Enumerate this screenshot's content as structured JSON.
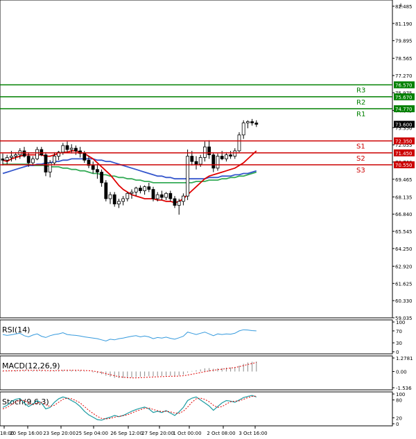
{
  "chart_data": {
    "type": "candlestick",
    "window_close_glyph": "▲",
    "main": {
      "price_ticks": [
        "82.485",
        "81.190",
        "79.895",
        "78.565",
        "77.270",
        "75.975",
        "74.645",
        "73.350",
        "72.055",
        "70.760",
        "69.465",
        "68.135",
        "66.840",
        "65.545",
        "64.250",
        "62.920",
        "61.625",
        "60.330",
        "59.035"
      ],
      "ylim": [
        59.035,
        82.485
      ],
      "levels": [
        {
          "name": "R3",
          "value": 76.57,
          "label": "76.570",
          "color": "#008000"
        },
        {
          "name": "R2",
          "value": 75.67,
          "label": "75.670",
          "color": "#008000"
        },
        {
          "name": "R1",
          "value": 74.77,
          "label": "74.770",
          "color": "#008000"
        },
        {
          "name": "S1",
          "value": 72.35,
          "label": "72.350",
          "color": "#cc0000"
        },
        {
          "name": "S2",
          "value": 71.45,
          "label": "71.450",
          "color": "#cc0000"
        },
        {
          "name": "S3",
          "value": 70.55,
          "label": "70.550",
          "color": "#cc0000"
        }
      ],
      "current_price": {
        "value": 73.6,
        "label": "73.600"
      },
      "candles": [
        [
          71.0,
          71.4,
          70.5,
          70.9
        ],
        [
          70.9,
          71.3,
          70.6,
          71.1
        ],
        [
          71.1,
          71.6,
          70.8,
          71.2
        ],
        [
          71.2,
          71.5,
          70.9,
          71.3
        ],
        [
          71.3,
          71.8,
          71.0,
          71.6
        ],
        [
          71.6,
          71.9,
          71.1,
          71.2
        ],
        [
          71.2,
          71.5,
          70.4,
          70.7
        ],
        [
          70.7,
          71.2,
          70.5,
          71.0
        ],
        [
          71.0,
          71.9,
          70.9,
          71.7
        ],
        [
          71.7,
          71.9,
          71.2,
          71.3
        ],
        [
          71.3,
          71.5,
          69.7,
          70.0
        ],
        [
          70.0,
          70.9,
          69.6,
          70.7
        ],
        [
          70.7,
          71.5,
          70.5,
          71.2
        ],
        [
          71.2,
          71.6,
          70.9,
          71.5
        ],
        [
          71.5,
          72.2,
          71.3,
          72.0
        ],
        [
          72.0,
          72.3,
          71.5,
          71.7
        ],
        [
          71.7,
          72.1,
          71.4,
          71.8
        ],
        [
          71.8,
          72.0,
          71.3,
          71.6
        ],
        [
          71.6,
          71.9,
          71.1,
          71.4
        ],
        [
          71.4,
          71.6,
          70.7,
          70.9
        ],
        [
          70.9,
          71.2,
          70.3,
          70.5
        ],
        [
          70.5,
          70.8,
          69.9,
          70.2
        ],
        [
          70.2,
          70.6,
          69.5,
          70.0
        ],
        [
          70.0,
          70.2,
          68.9,
          69.2
        ],
        [
          69.2,
          69.4,
          67.8,
          68.0
        ],
        [
          68.0,
          68.5,
          67.6,
          68.3
        ],
        [
          68.3,
          68.5,
          67.4,
          67.6
        ],
        [
          67.6,
          68.0,
          67.3,
          67.8
        ],
        [
          67.8,
          68.2,
          67.5,
          68.0
        ],
        [
          68.0,
          68.5,
          67.8,
          68.4
        ],
        [
          68.4,
          68.7,
          68.0,
          68.5
        ],
        [
          68.5,
          68.9,
          68.2,
          68.8
        ],
        [
          68.8,
          69.0,
          68.4,
          68.6
        ],
        [
          68.6,
          69.0,
          68.3,
          68.9
        ],
        [
          68.9,
          69.2,
          68.5,
          68.7
        ],
        [
          68.7,
          68.9,
          67.8,
          68.0
        ],
        [
          68.0,
          68.5,
          67.8,
          68.3
        ],
        [
          68.3,
          68.6,
          67.9,
          68.1
        ],
        [
          68.1,
          68.5,
          67.9,
          68.4
        ],
        [
          68.4,
          68.6,
          67.8,
          68.0
        ],
        [
          68.0,
          68.2,
          67.3,
          67.5
        ],
        [
          67.5,
          68.0,
          66.8,
          67.8
        ],
        [
          67.8,
          68.4,
          67.5,
          68.2
        ],
        [
          68.2,
          71.7,
          67.9,
          71.2
        ],
        [
          71.2,
          71.6,
          70.5,
          70.8
        ],
        [
          70.8,
          71.2,
          70.2,
          70.6
        ],
        [
          70.6,
          71.3,
          70.4,
          71.1
        ],
        [
          71.1,
          72.3,
          70.8,
          71.9
        ],
        [
          71.9,
          72.4,
          71.0,
          71.3
        ],
        [
          71.3,
          71.5,
          70.0,
          70.3
        ],
        [
          70.3,
          71.4,
          70.1,
          71.2
        ],
        [
          71.2,
          71.6,
          70.9,
          71.0
        ],
        [
          71.0,
          71.5,
          70.8,
          71.3
        ],
        [
          71.3,
          71.6,
          71.0,
          71.2
        ],
        [
          71.2,
          71.8,
          71.0,
          71.6
        ],
        [
          71.6,
          73.0,
          71.5,
          72.8
        ],
        [
          72.8,
          73.9,
          72.5,
          73.7
        ],
        [
          73.7,
          73.9,
          73.3,
          73.8
        ],
        [
          73.8,
          74.0,
          73.5,
          73.7
        ],
        [
          73.7,
          73.9,
          73.4,
          73.6
        ]
      ],
      "ma_red": [
        70.9,
        70.8,
        71.0,
        71.1,
        71.2,
        71.3,
        71.3,
        71.3,
        71.3,
        71.3,
        71.2,
        71.2,
        71.3,
        71.4,
        71.5,
        71.5,
        71.6,
        71.6,
        71.5,
        71.4,
        71.2,
        71.0,
        70.7,
        70.4,
        70.1,
        69.8,
        69.4,
        69.0,
        68.7,
        68.5,
        68.3,
        68.2,
        68.1,
        68.0,
        68.0,
        68.0,
        67.9,
        67.9,
        67.8,
        67.8,
        67.7,
        67.8,
        68.0,
        68.3,
        68.6,
        68.9,
        69.2,
        69.5,
        69.7,
        69.8,
        69.9,
        70.0,
        70.1,
        70.2,
        70.3,
        70.5,
        70.7,
        71.0,
        71.3,
        71.6
      ],
      "ma_blue": [
        69.9,
        70.0,
        70.1,
        70.2,
        70.3,
        70.4,
        70.5,
        70.5,
        70.6,
        70.6,
        70.7,
        70.7,
        70.8,
        70.8,
        70.9,
        70.9,
        71.0,
        71.0,
        71.0,
        71.0,
        71.0,
        71.0,
        70.9,
        70.9,
        70.8,
        70.8,
        70.7,
        70.6,
        70.5,
        70.4,
        70.3,
        70.2,
        70.1,
        70.0,
        69.9,
        69.8,
        69.7,
        69.7,
        69.6,
        69.6,
        69.5,
        69.5,
        69.5,
        69.5,
        69.5,
        69.5,
        69.5,
        69.5,
        69.6,
        69.6,
        69.6,
        69.7,
        69.7,
        69.7,
        69.8,
        69.8,
        69.9,
        69.9,
        70.0,
        70.1
      ],
      "ma_green": [
        70.6,
        70.6,
        70.6,
        70.6,
        70.6,
        70.6,
        70.6,
        70.5,
        70.5,
        70.5,
        70.5,
        70.4,
        70.4,
        70.4,
        70.3,
        70.3,
        70.2,
        70.2,
        70.1,
        70.1,
        70.0,
        69.9,
        69.9,
        69.8,
        69.8,
        69.7,
        69.7,
        69.6,
        69.6,
        69.5,
        69.5,
        69.4,
        69.4,
        69.3,
        69.3,
        69.2,
        69.2,
        69.2,
        69.2,
        69.2,
        69.2,
        69.2,
        69.2,
        69.2,
        69.2,
        69.3,
        69.3,
        69.3,
        69.4,
        69.4,
        69.4,
        69.5,
        69.5,
        69.6,
        69.6,
        69.7,
        69.7,
        69.8,
        69.9,
        70.0
      ]
    },
    "rsi": {
      "label": "RSI(14)",
      "ticks": [
        "100",
        "70",
        "30",
        "0"
      ],
      "range": [
        0,
        100
      ],
      "values": [
        58,
        55,
        57,
        60,
        62,
        54,
        50,
        56,
        60,
        52,
        48,
        54,
        58,
        60,
        64,
        58,
        56,
        55,
        53,
        50,
        48,
        46,
        44,
        40,
        36,
        42,
        40,
        44,
        46,
        49,
        52,
        54,
        50,
        53,
        50,
        44,
        48,
        46,
        49,
        45,
        42,
        47,
        52,
        66,
        62,
        58,
        62,
        66,
        60,
        54,
        60,
        58,
        60,
        59,
        62,
        70,
        74,
        73,
        71,
        70
      ]
    },
    "macd": {
      "label": "MACD(12,26,9)",
      "ticks": [
        "1.2781",
        "0.00",
        "-1.536"
      ],
      "range": [
        -1.536,
        1.2781
      ],
      "histogram": [
        0.05,
        0.06,
        0.08,
        0.1,
        0.12,
        0.12,
        0.1,
        0.1,
        0.12,
        0.1,
        0.06,
        0.06,
        0.08,
        0.1,
        0.14,
        0.14,
        0.13,
        0.12,
        0.1,
        0.05,
        0,
        -0.08,
        -0.15,
        -0.25,
        -0.4,
        -0.5,
        -0.6,
        -0.62,
        -0.62,
        -0.6,
        -0.56,
        -0.52,
        -0.5,
        -0.46,
        -0.44,
        -0.45,
        -0.44,
        -0.42,
        -0.4,
        -0.4,
        -0.42,
        -0.38,
        -0.3,
        -0.1,
        0.05,
        0.12,
        0.2,
        0.3,
        0.32,
        0.26,
        0.3,
        0.32,
        0.36,
        0.38,
        0.42,
        0.55,
        0.72,
        0.85,
        0.92,
        0.95
      ],
      "signal": [
        0.05,
        0.06,
        0.07,
        0.08,
        0.1,
        0.11,
        0.11,
        0.11,
        0.12,
        0.11,
        0.1,
        0.09,
        0.09,
        0.1,
        0.11,
        0.12,
        0.12,
        0.12,
        0.12,
        0.1,
        0.08,
        0.04,
        -0.02,
        -0.1,
        -0.2,
        -0.3,
        -0.4,
        -0.48,
        -0.54,
        -0.58,
        -0.6,
        -0.6,
        -0.58,
        -0.56,
        -0.54,
        -0.52,
        -0.5,
        -0.48,
        -0.46,
        -0.45,
        -0.44,
        -0.43,
        -0.4,
        -0.34,
        -0.26,
        -0.18,
        -0.1,
        -0.02,
        0.06,
        0.12,
        0.18,
        0.22,
        0.28,
        0.32,
        0.38,
        0.46,
        0.56,
        0.66,
        0.76,
        0.85
      ]
    },
    "stoch": {
      "label": "Stoch(9,6,3)",
      "ticks": [
        "100",
        "80",
        "20",
        "0"
      ],
      "range": [
        0,
        100
      ],
      "k": [
        55,
        62,
        75,
        82,
        85,
        70,
        58,
        66,
        78,
        70,
        50,
        55,
        72,
        84,
        90,
        86,
        78,
        70,
        58,
        42,
        30,
        22,
        14,
        12,
        18,
        22,
        28,
        24,
        28,
        35,
        42,
        48,
        52,
        56,
        50,
        38,
        42,
        38,
        44,
        36,
        28,
        40,
        55,
        78,
        86,
        90,
        80,
        70,
        60,
        45,
        58,
        70,
        78,
        76,
        72,
        80,
        88,
        92,
        95,
        90
      ],
      "d": [
        50,
        55,
        64,
        72,
        80,
        78,
        70,
        64,
        70,
        72,
        64,
        58,
        62,
        72,
        82,
        86,
        84,
        78,
        70,
        58,
        45,
        35,
        25,
        18,
        16,
        18,
        22,
        25,
        27,
        30,
        36,
        42,
        47,
        52,
        53,
        48,
        44,
        41,
        42,
        40,
        36,
        35,
        42,
        56,
        72,
        84,
        86,
        82,
        74,
        62,
        55,
        58,
        66,
        74,
        76,
        77,
        82,
        88,
        92,
        93
      ]
    },
    "x_tick_labels": [
      "18:00",
      "20 Sep 16:00",
      "23 Sep 20:00",
      "25 Sep 04:00",
      "26 Sep 12:00",
      "27 Sep 20:00",
      "1 Oct 00:00",
      "2 Oct 08:00",
      "3 Oct 16:00"
    ]
  },
  "colors": {
    "bull_body": "#ffffff",
    "bear_body": "#000000",
    "candle_outline": "#000000",
    "ma_red": "#e00000",
    "ma_blue": "#3355cc",
    "ma_green": "#33aa55",
    "rsi_line": "#3399dd",
    "macd_hist": "#888888",
    "macd_signal": "#e00000",
    "stoch_k": "#1a9aa0",
    "stoch_d": "#e00000",
    "support": "#cc0000",
    "resistance": "#008000",
    "current_price_bg": "#000000"
  }
}
